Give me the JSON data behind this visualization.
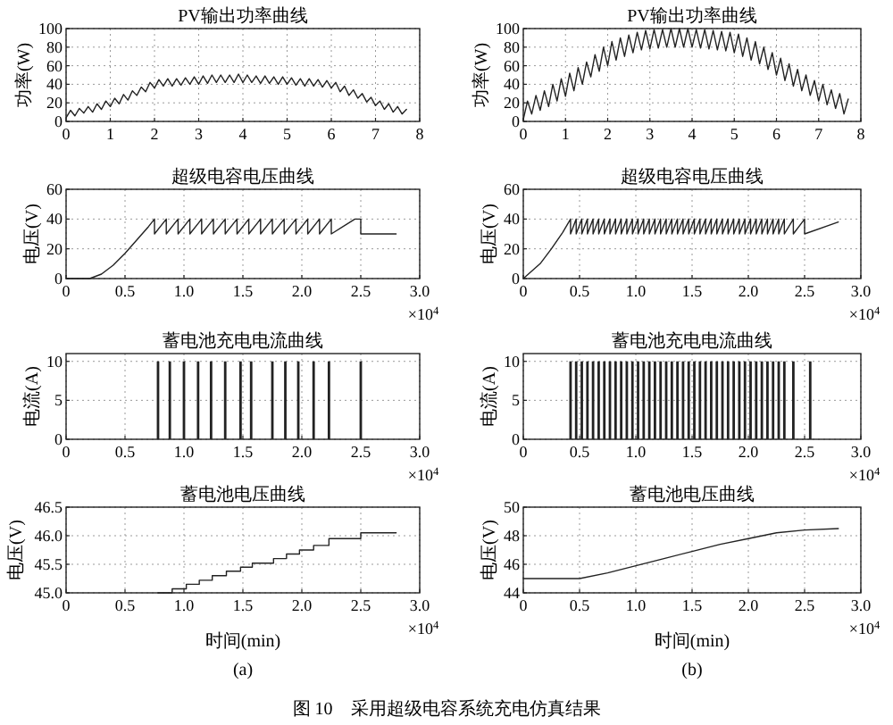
{
  "chart_data": [
    {
      "type": "line",
      "title": "PV输出功率曲线",
      "ylabel": "功率(W)",
      "xlim": [
        0,
        8
      ],
      "xticks": [
        0,
        1,
        2,
        3,
        4,
        5,
        6,
        7,
        8
      ],
      "ylim": [
        0,
        100
      ],
      "yticks": [
        0,
        20,
        40,
        60,
        80,
        100
      ],
      "grid": true,
      "line_style": "solid",
      "color": "#222222",
      "x": [
        0,
        0.1,
        0.2,
        0.3,
        0.4,
        0.5,
        0.6,
        0.7,
        0.8,
        0.9,
        1,
        1.1,
        1.2,
        1.3,
        1.4,
        1.5,
        1.6,
        1.7,
        1.8,
        1.9,
        2,
        2.1,
        2.2,
        2.3,
        2.4,
        2.5,
        2.6,
        2.7,
        2.8,
        2.9,
        3,
        3.1,
        3.2,
        3.3,
        3.4,
        3.5,
        3.6,
        3.7,
        3.8,
        3.9,
        4,
        4.1,
        4.2,
        4.3,
        4.4,
        4.5,
        4.6,
        4.7,
        4.8,
        4.9,
        5,
        5.1,
        5.2,
        5.3,
        5.4,
        5.5,
        5.6,
        5.7,
        5.8,
        5.9,
        6,
        6.1,
        6.2,
        6.3,
        6.4,
        6.5,
        6.6,
        6.7,
        6.8,
        6.9,
        7,
        7.1,
        7.2,
        7.3,
        7.4,
        7.5,
        7.6,
        7.7
      ],
      "values": [
        4,
        12,
        6,
        14,
        9,
        16,
        10,
        19,
        13,
        22,
        16,
        25,
        19,
        29,
        23,
        33,
        28,
        37,
        32,
        42,
        36,
        45,
        38,
        46,
        38,
        46,
        39,
        47,
        40,
        48,
        40,
        49,
        41,
        50,
        42,
        50,
        42,
        50,
        42,
        51,
        42,
        50,
        42,
        49,
        41,
        49,
        41,
        48,
        40,
        48,
        40,
        47,
        39,
        46,
        38,
        46,
        38,
        45,
        37,
        44,
        36,
        42,
        32,
        38,
        28,
        34,
        25,
        30,
        21,
        26,
        17,
        22,
        13,
        19,
        10,
        16,
        8,
        13
      ]
    },
    {
      "type": "line",
      "title": "PV输出功率曲线",
      "ylabel": "功率(W)",
      "xlim": [
        0,
        8
      ],
      "xticks": [
        0,
        1,
        2,
        3,
        4,
        5,
        6,
        7,
        8
      ],
      "ylim": [
        0,
        100
      ],
      "yticks": [
        0,
        20,
        40,
        60,
        80,
        100
      ],
      "grid": true,
      "line_style": "solid",
      "color": "#222222",
      "x": [
        0,
        0.1,
        0.2,
        0.3,
        0.4,
        0.5,
        0.6,
        0.7,
        0.8,
        0.9,
        1,
        1.1,
        1.2,
        1.3,
        1.4,
        1.5,
        1.6,
        1.7,
        1.8,
        1.9,
        2,
        2.1,
        2.2,
        2.3,
        2.4,
        2.5,
        2.6,
        2.7,
        2.8,
        2.9,
        3,
        3.1,
        3.2,
        3.3,
        3.4,
        3.5,
        3.6,
        3.7,
        3.8,
        3.9,
        4,
        4.1,
        4.2,
        4.3,
        4.4,
        4.5,
        4.6,
        4.7,
        4.8,
        4.9,
        5,
        5.1,
        5.2,
        5.3,
        5.4,
        5.5,
        5.6,
        5.7,
        5.8,
        5.9,
        6,
        6.1,
        6.2,
        6.3,
        6.4,
        6.5,
        6.6,
        6.7,
        6.8,
        6.9,
        7,
        7.1,
        7.2,
        7.3,
        7.4,
        7.5,
        7.6,
        7.7
      ],
      "values": [
        2,
        22,
        8,
        28,
        12,
        33,
        16,
        40,
        22,
        46,
        27,
        52,
        33,
        58,
        40,
        64,
        48,
        72,
        54,
        80,
        60,
        86,
        66,
        90,
        70,
        93,
        74,
        96,
        77,
        98,
        78,
        99,
        79,
        99,
        80,
        100,
        80,
        100,
        80,
        100,
        80,
        99,
        79,
        99,
        78,
        98,
        77,
        97,
        76,
        96,
        74,
        94,
        70,
        90,
        66,
        86,
        62,
        80,
        56,
        74,
        50,
        68,
        44,
        62,
        38,
        56,
        33,
        50,
        28,
        44,
        22,
        40,
        18,
        34,
        14,
        30,
        8,
        24
      ]
    },
    {
      "type": "line",
      "title": "超级电容电压曲线",
      "ylabel": "电压(V)",
      "xlim": [
        0,
        3
      ],
      "xticks": [
        0,
        0.5,
        {
          "value": 1,
          "label": "1.0"
        },
        1.5,
        {
          "value": 2,
          "label": "2.0"
        },
        2.5,
        {
          "value": 3,
          "label": "3.0"
        }
      ],
      "ylim": [
        0,
        60
      ],
      "yticks": [
        0,
        20,
        40,
        60
      ],
      "grid": true,
      "line_style": "solid",
      "color": "#222222",
      "annotations": [
        "×10$^{4}$"
      ],
      "x": [
        0,
        0.2,
        0.3,
        0.4,
        0.5,
        0.6,
        0.7,
        0.75,
        0.75,
        0.85,
        0.85,
        0.95,
        0.95,
        1.05,
        1.05,
        1.15,
        1.15,
        1.25,
        1.25,
        1.35,
        1.35,
        1.45,
        1.45,
        1.55,
        1.55,
        1.65,
        1.65,
        1.75,
        1.75,
        1.85,
        1.85,
        1.95,
        1.95,
        2.05,
        2.05,
        2.15,
        2.15,
        2.25,
        2.25,
        2.45,
        2.5,
        2.5,
        2.8
      ],
      "values": [
        0,
        0,
        3,
        9,
        17,
        26,
        35,
        40,
        30,
        40,
        30,
        40,
        30,
        40,
        30,
        40,
        30,
        40,
        30,
        40,
        30,
        40,
        30,
        40,
        30,
        40,
        30,
        40,
        30,
        40,
        30,
        40,
        30,
        40,
        30,
        40,
        30,
        40,
        30,
        40,
        40,
        30,
        30
      ]
    },
    {
      "type": "line",
      "title": "超级电容电压曲线",
      "ylabel": "电压(V)",
      "xlim": [
        0,
        3
      ],
      "xticks": [
        0,
        0.5,
        {
          "value": 1,
          "label": "1.0"
        },
        1.5,
        {
          "value": 2,
          "label": "2.0"
        },
        2.5,
        {
          "value": 3,
          "label": "3.0"
        }
      ],
      "ylim": [
        0,
        60
      ],
      "yticks": [
        0,
        20,
        40,
        60
      ],
      "grid": true,
      "line_style": "solid",
      "color": "#222222",
      "annotations": [
        "×10$^{4}$"
      ],
      "x": [
        0,
        0.15,
        0.25,
        0.35,
        0.42,
        0.42,
        0.47,
        0.47,
        0.52,
        0.52,
        0.57,
        0.57,
        0.62,
        0.62,
        0.67,
        0.67,
        0.72,
        0.72,
        0.77,
        0.77,
        0.82,
        0.82,
        0.87,
        0.87,
        0.92,
        0.92,
        0.97,
        0.97,
        1.02,
        1.02,
        1.07,
        1.07,
        1.12,
        1.12,
        1.17,
        1.17,
        1.22,
        1.22,
        1.27,
        1.27,
        1.32,
        1.32,
        1.37,
        1.37,
        1.42,
        1.42,
        1.47,
        1.47,
        1.52,
        1.52,
        1.57,
        1.57,
        1.62,
        1.62,
        1.67,
        1.67,
        1.72,
        1.72,
        1.77,
        1.77,
        1.82,
        1.82,
        1.87,
        1.87,
        1.92,
        1.92,
        1.97,
        1.97,
        2.02,
        2.02,
        2.07,
        2.07,
        2.12,
        2.12,
        2.17,
        2.17,
        2.22,
        2.22,
        2.27,
        2.27,
        2.32,
        2.32,
        2.4,
        2.4,
        2.5,
        2.5,
        2.8
      ],
      "values": [
        0,
        10,
        20,
        31,
        40,
        30,
        40,
        30,
        40,
        30,
        40,
        30,
        40,
        30,
        40,
        30,
        40,
        30,
        40,
        30,
        40,
        30,
        40,
        30,
        40,
        30,
        40,
        30,
        40,
        30,
        40,
        30,
        40,
        30,
        40,
        30,
        40,
        30,
        40,
        30,
        40,
        30,
        40,
        30,
        40,
        30,
        40,
        30,
        40,
        30,
        40,
        30,
        40,
        30,
        40,
        30,
        40,
        30,
        40,
        30,
        40,
        30,
        40,
        30,
        40,
        30,
        40,
        30,
        40,
        30,
        40,
        30,
        40,
        30,
        40,
        30,
        40,
        30,
        40,
        30,
        40,
        30,
        40,
        30,
        40,
        30,
        38
      ]
    },
    {
      "type": "bar",
      "title": "蓄电池充电电流曲线",
      "ylabel": "电流(A)",
      "xlim": [
        0,
        3
      ],
      "xticks": [
        0,
        0.5,
        {
          "value": 1,
          "label": "1.0"
        },
        1.5,
        {
          "value": 2,
          "label": "2.0"
        },
        2.5,
        {
          "value": 3,
          "label": "3.0"
        }
      ],
      "ylim": [
        0,
        11
      ],
      "yticks": [
        0,
        5,
        10
      ],
      "grid": true,
      "color": "#222222",
      "annotations": [
        "×10$^{4}$"
      ],
      "x": [
        0.78,
        0.88,
        1.0,
        1.12,
        1.23,
        1.35,
        1.48,
        1.57,
        1.75,
        1.86,
        1.97,
        2.1,
        2.23,
        2.5
      ],
      "values": [
        10,
        10,
        10,
        10,
        10,
        10,
        10,
        10,
        10,
        10,
        10,
        10,
        10,
        10
      ]
    },
    {
      "type": "bar",
      "title": "蓄电池充电电流曲线",
      "ylabel": "电流(A)",
      "xlim": [
        0,
        3
      ],
      "xticks": [
        0,
        0.5,
        {
          "value": 1,
          "label": "1.0"
        },
        1.5,
        {
          "value": 2,
          "label": "2.0"
        },
        2.5,
        {
          "value": 3,
          "label": "3.0"
        }
      ],
      "ylim": [
        0,
        11
      ],
      "yticks": [
        0,
        5,
        10
      ],
      "grid": true,
      "color": "#222222",
      "annotations": [
        "×10$^{4}$"
      ],
      "x": [
        0.42,
        0.47,
        0.52,
        0.57,
        0.62,
        0.67,
        0.72,
        0.77,
        0.82,
        0.87,
        0.92,
        0.97,
        1.02,
        1.07,
        1.12,
        1.17,
        1.22,
        1.27,
        1.32,
        1.37,
        1.42,
        1.47,
        1.52,
        1.57,
        1.62,
        1.67,
        1.72,
        1.77,
        1.82,
        1.87,
        1.92,
        1.97,
        2.02,
        2.07,
        2.12,
        2.17,
        2.22,
        2.27,
        2.32,
        2.4,
        2.55
      ],
      "values": [
        10,
        10,
        10,
        10,
        10,
        10,
        10,
        10,
        10,
        10,
        10,
        10,
        10,
        10,
        10,
        10,
        10,
        10,
        10,
        10,
        10,
        10,
        10,
        10,
        10,
        10,
        10,
        10,
        10,
        10,
        10,
        10,
        10,
        10,
        10,
        10,
        10,
        10,
        10,
        10,
        10
      ]
    },
    {
      "type": "step",
      "title": "蓄电池电压曲线",
      "ylabel": "电压(V)",
      "xlabel": "时间(min)",
      "xlim": [
        0,
        3
      ],
      "xticks": [
        0,
        0.5,
        {
          "value": 1,
          "label": "1.0"
        },
        1.5,
        {
          "value": 2,
          "label": "2.0"
        },
        2.5,
        {
          "value": 3,
          "label": "3.0"
        }
      ],
      "ylim": [
        45,
        46.5
      ],
      "yticks": [
        {
          "value": 45,
          "label": "45.0"
        },
        45.5,
        {
          "value": 46,
          "label": "46.0"
        },
        46.5
      ],
      "grid": true,
      "line_style": "solid",
      "color": "#222222",
      "annotations": [
        "×10$^{4}$",
        "(a)"
      ],
      "x": [
        0.78,
        0.9,
        1.02,
        1.13,
        1.24,
        1.36,
        1.48,
        1.58,
        1.76,
        1.87,
        1.98,
        2.1,
        2.23,
        2.5,
        2.8
      ],
      "values": [
        45.0,
        45.07,
        45.15,
        45.22,
        45.3,
        45.38,
        45.45,
        45.52,
        45.6,
        45.68,
        45.75,
        45.83,
        45.95,
        46.05,
        46.05
      ]
    },
    {
      "type": "line",
      "title": "蓄电池电压曲线",
      "ylabel": "电压(V)",
      "xlabel": "时间(min)",
      "xlim": [
        0,
        3
      ],
      "xticks": [
        0,
        0.5,
        {
          "value": 1,
          "label": "1.0"
        },
        1.5,
        {
          "value": 2,
          "label": "2.0"
        },
        2.5,
        {
          "value": 3,
          "label": "3.0"
        }
      ],
      "ylim": [
        44,
        50
      ],
      "yticks": [
        44,
        46,
        48,
        50
      ],
      "grid": true,
      "line_style": "solid",
      "color": "#222222",
      "annotations": [
        "×10$^{4}$",
        "(b)",
        "图 10　采用超级电容系统充电仿真结果"
      ],
      "x": [
        0,
        0.5,
        0.75,
        1,
        1.25,
        1.5,
        1.75,
        2,
        2.25,
        2.5,
        2.8
      ],
      "values": [
        45,
        45,
        45.4,
        45.9,
        46.4,
        46.9,
        47.4,
        47.8,
        48.2,
        48.4,
        48.5
      ]
    }
  ]
}
